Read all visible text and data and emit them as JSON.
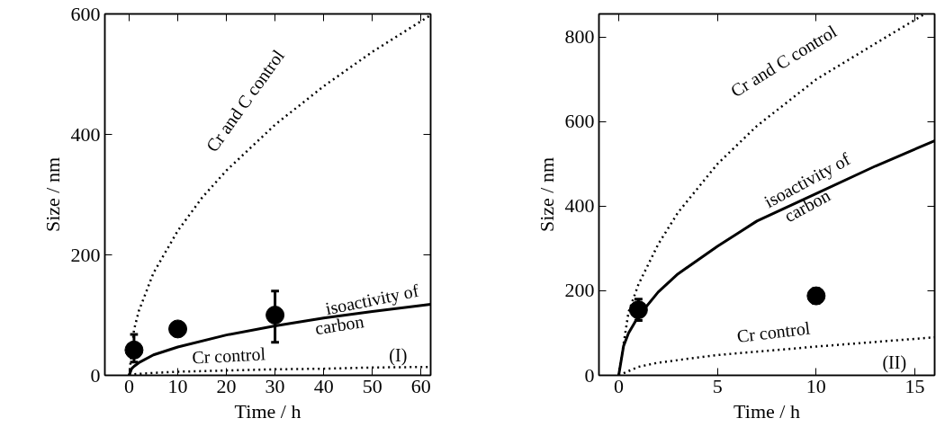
{
  "chart_data": [
    {
      "type": "line",
      "xlabel": "Time / h",
      "ylabel": "Size / nm",
      "xlim": [
        -5,
        62
      ],
      "ylim": [
        0,
        600
      ],
      "xticks": [
        0,
        10,
        20,
        30,
        40,
        50,
        60
      ],
      "yticks": [
        0,
        200,
        400,
        600
      ],
      "series": [
        {
          "line_style": "dotted",
          "color": "#000000",
          "x": [
            0,
            1,
            2,
            5,
            10,
            15,
            20,
            30,
            40,
            50,
            62
          ],
          "values": [
            0,
            76,
            107,
            170,
            240,
            295,
            340,
            416,
            480,
            537,
            598
          ]
        },
        {
          "line_style": "solid",
          "color": "#000000",
          "x": [
            0,
            0.5,
            1,
            2,
            5,
            10,
            20,
            30,
            40,
            50,
            62
          ],
          "values": [
            0,
            11,
            15,
            21,
            34,
            47,
            67,
            82,
            95,
            106,
            118
          ]
        },
        {
          "line_style": "dotted",
          "color": "#000000",
          "x": [
            0,
            1,
            5,
            10,
            20,
            30,
            40,
            50,
            62
          ],
          "values": [
            0,
            2,
            4,
            6,
            8,
            10,
            11,
            13,
            14
          ]
        },
        {
          "type": "scatter",
          "marker": "circle",
          "color": "#000000",
          "x": [
            1,
            10,
            30
          ],
          "values": [
            42,
            77,
            100
          ],
          "errors": [
            [
              22,
              68
            ],
            null,
            [
              55,
              140
            ]
          ]
        }
      ],
      "annotations": [
        "Cr and C control",
        "isoactivity of",
        "carbon",
        "Cr control",
        "(I)"
      ]
    },
    {
      "type": "line",
      "xlabel": "Time / h",
      "ylabel": "Size / nm",
      "xlim": [
        -1,
        16
      ],
      "ylim": [
        0,
        855
      ],
      "xticks": [
        0,
        5,
        10,
        15
      ],
      "yticks": [
        0,
        200,
        400,
        600,
        800
      ],
      "series": [
        {
          "line_style": "dotted",
          "color": "#000000",
          "x": [
            0,
            0.5,
            1,
            2,
            3,
            5,
            7,
            10,
            13,
            15.5
          ],
          "values": [
            0,
            150,
            215,
            310,
            385,
            500,
            590,
            700,
            785,
            855
          ]
        },
        {
          "line_style": "solid",
          "color": "#000000",
          "x": [
            0,
            0.25,
            0.5,
            1,
            2,
            3,
            5,
            7,
            10,
            13,
            16
          ],
          "values": [
            0,
            70,
            100,
            140,
            197,
            240,
            305,
            365,
            430,
            495,
            555
          ]
        },
        {
          "line_style": "dotted",
          "color": "#000000",
          "x": [
            0,
            1,
            2,
            5,
            10,
            16
          ],
          "values": [
            0,
            20,
            30,
            48,
            68,
            90
          ]
        },
        {
          "type": "scatter",
          "marker": "circle",
          "color": "#000000",
          "x": [
            1,
            10
          ],
          "values": [
            155,
            188
          ],
          "errors": [
            [
              130,
              180
            ],
            [
              170,
              205
            ]
          ]
        }
      ],
      "annotations": [
        "Cr and C control",
        "isoactivity of",
        "carbon",
        "Cr control",
        "(II)"
      ]
    }
  ]
}
